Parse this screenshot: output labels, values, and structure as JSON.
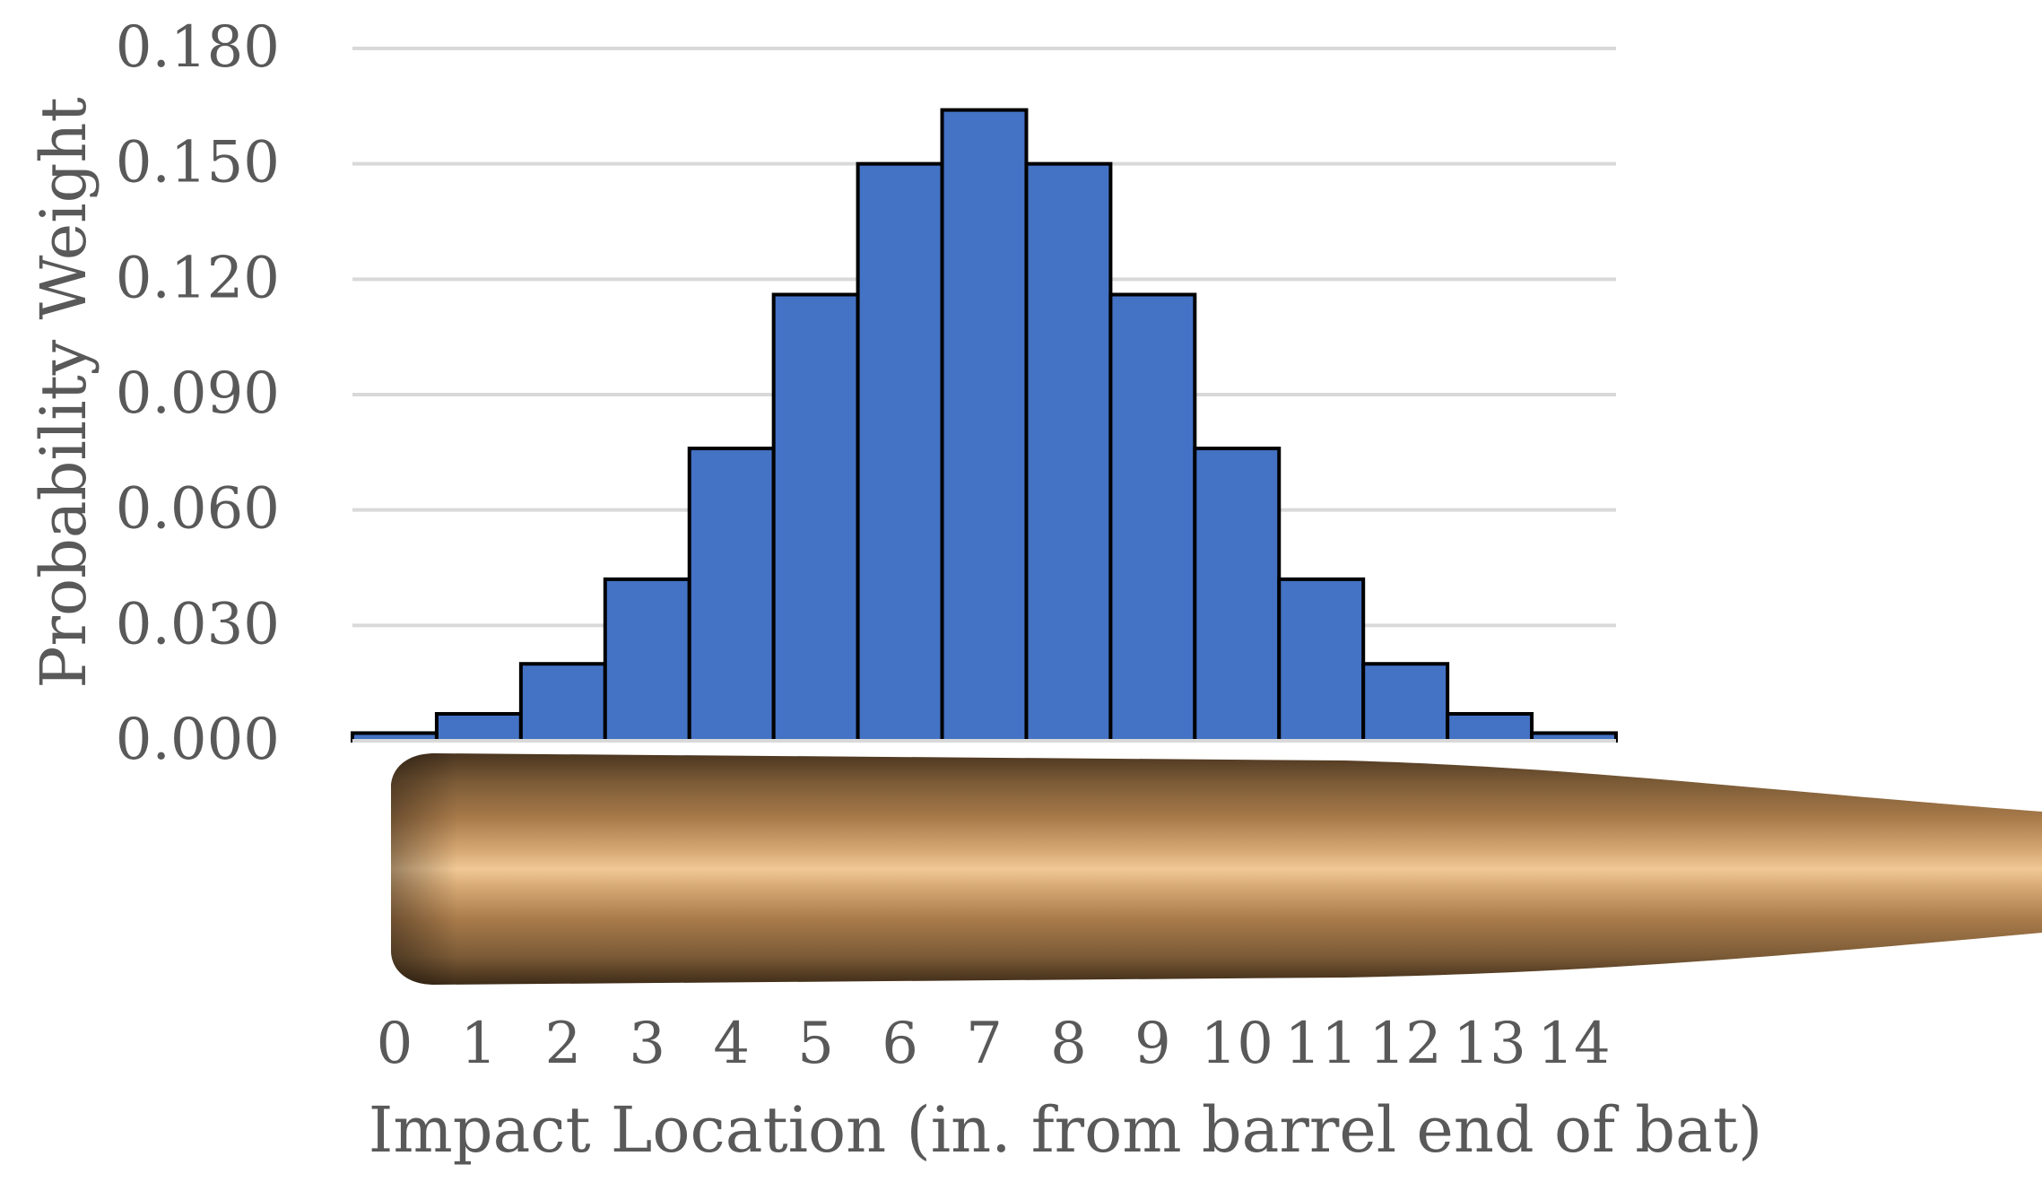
{
  "chart_data": {
    "type": "bar",
    "title": "",
    "xlabel": "Impact Location (in. from barrel end of bat)",
    "ylabel": "Probability Weight",
    "categories": [
      "0",
      "1",
      "2",
      "3",
      "4",
      "5",
      "6",
      "7",
      "8",
      "9",
      "10",
      "11",
      "12",
      "13",
      "14"
    ],
    "values": [
      0.002,
      0.007,
      0.02,
      0.042,
      0.076,
      0.116,
      0.15,
      0.164,
      0.15,
      0.116,
      0.076,
      0.042,
      0.02,
      0.007,
      0.002
    ],
    "ylim": [
      0,
      0.18
    ],
    "yticks": [
      "0.000",
      "0.030",
      "0.060",
      "0.090",
      "0.120",
      "0.150",
      "0.180"
    ],
    "grid": true,
    "legend": "none",
    "colors": {
      "bar_fill": "#4472C4",
      "bar_stroke": "#000000",
      "grid": "#D9D9D9",
      "text": "#595959",
      "bat_dark": "#4a3520",
      "bat_mid": "#a87a4a",
      "bat_light": "#f0c896"
    },
    "decoration": "baseball-bat-illustration"
  }
}
